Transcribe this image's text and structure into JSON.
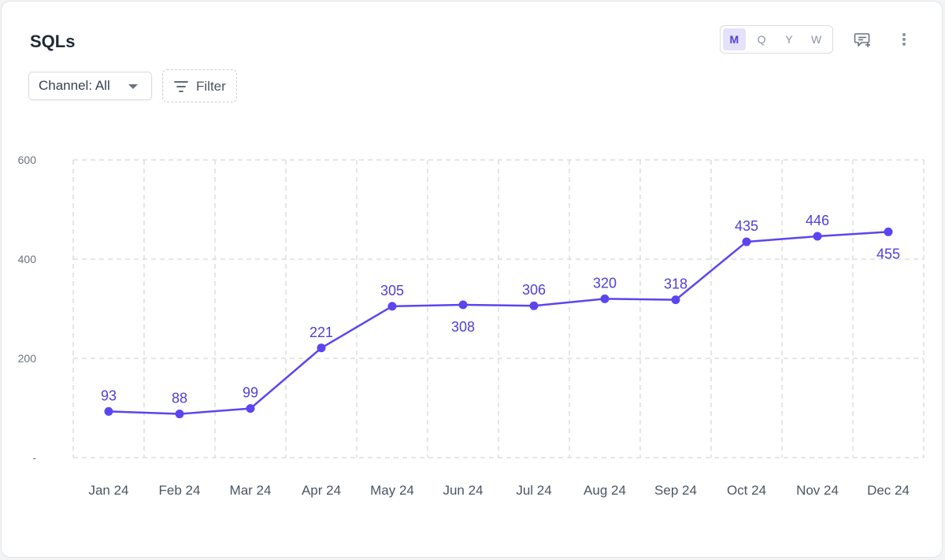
{
  "header": {
    "title": "SQLs",
    "channel_filter": "Channel: All",
    "filter_label": "Filter"
  },
  "period_toggle": {
    "options": [
      "M",
      "Q",
      "Y",
      "W"
    ],
    "selected": "M"
  },
  "icons": {
    "caret": "chevron-down-icon",
    "filter": "filter-lines-icon",
    "comment": "comment-add-icon",
    "more": "vertical-dots-icon"
  },
  "colors": {
    "series": "#5b45f0",
    "label": "#4f3fd6",
    "grid": "#d6d8dc"
  },
  "chart_data": {
    "type": "line",
    "x": [
      "Jan 24",
      "Feb 24",
      "Mar 24",
      "Apr 24",
      "May 24",
      "Jun 24",
      "Jul 24",
      "Aug 24",
      "Sep 24",
      "Oct 24",
      "Nov 24",
      "Dec 24"
    ],
    "series": [
      {
        "values": [
          93,
          88,
          99,
          221,
          305,
          308,
          306,
          320,
          318,
          435,
          446,
          455
        ]
      }
    ],
    "data_labels": [
      "93",
      "88",
      "99",
      "221",
      "305",
      "308",
      "306",
      "320",
      "318",
      "435",
      "446",
      "455"
    ],
    "yticks": [
      "-",
      "200",
      "400",
      "600"
    ],
    "ylim": [
      0,
      600
    ],
    "grid": true,
    "legend": "none"
  }
}
